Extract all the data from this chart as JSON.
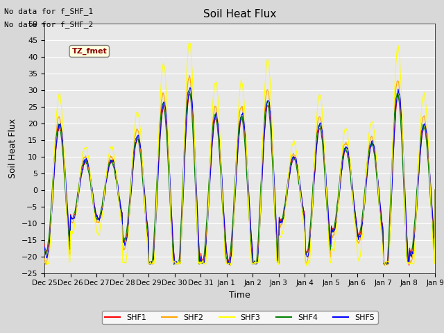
{
  "title": "Soil Heat Flux",
  "ylabel": "Soil Heat Flux",
  "xlabel": "Time",
  "ylim": [
    -25,
    50
  ],
  "no_data_text": [
    "No data for f_SHF_1",
    "No data for f_SHF_2"
  ],
  "tz_label": "TZ_fmet",
  "background_color": "#e8e8e8",
  "plot_bg_color": "#e8e8e8",
  "grid_color": "white",
  "legend_entries": [
    "SHF1",
    "SHF2",
    "SHF3",
    "SHF4",
    "SHF5"
  ],
  "line_colors": [
    "red",
    "orange",
    "yellow",
    "green",
    "blue"
  ],
  "x_tick_labels": [
    "Dec 25",
    "Dec 26",
    "Dec 27",
    "Dec 28",
    "Dec 29",
    "Dec 30",
    "Dec 31",
    "Jan 1",
    "Jan 2",
    "Jan 3",
    "Jan 4",
    "Jan 5",
    "Jan 6",
    "Jan 7",
    "Jan 8",
    "Jan 9"
  ],
  "n_days": 15,
  "start_day": 0
}
